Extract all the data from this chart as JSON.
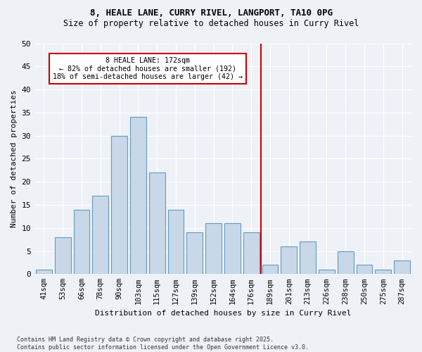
{
  "title": "8, HEALE LANE, CURRY RIVEL, LANGPORT, TA10 0PG",
  "subtitle": "Size of property relative to detached houses in Curry Rivel",
  "xlabel": "Distribution of detached houses by size in Curry Rivel",
  "ylabel": "Number of detached properties",
  "footnote": "Contains HM Land Registry data © Crown copyright and database right 2025.\nContains public sector information licensed under the Open Government Licence v3.0.",
  "bins": [
    "41sqm",
    "53sqm",
    "66sqm",
    "78sqm",
    "90sqm",
    "103sqm",
    "115sqm",
    "127sqm",
    "139sqm",
    "152sqm",
    "164sqm",
    "176sqm",
    "189sqm",
    "201sqm",
    "213sqm",
    "226sqm",
    "238sqm",
    "250sqm",
    "275sqm",
    "287sqm"
  ],
  "values": [
    1,
    8,
    14,
    17,
    30,
    34,
    22,
    14,
    9,
    11,
    11,
    9,
    2,
    6,
    7,
    1,
    5,
    2,
    1,
    3
  ],
  "bar_color": "#c8d8e8",
  "bar_edge_color": "#6699bb",
  "line_color": "#cc0000",
  "line_x_index": 11.5,
  "annotation_title": "8 HEALE LANE: 172sqm",
  "annotation_line1": "← 82% of detached houses are smaller (192)",
  "annotation_line2": "18% of semi-detached houses are larger (42) →",
  "annotation_box_color": "#cc0000",
  "ylim": [
    0,
    50
  ],
  "yticks": [
    0,
    5,
    10,
    15,
    20,
    25,
    30,
    35,
    40,
    45,
    50
  ],
  "background_color": "#eef2f7",
  "grid_color": "#ffffff"
}
